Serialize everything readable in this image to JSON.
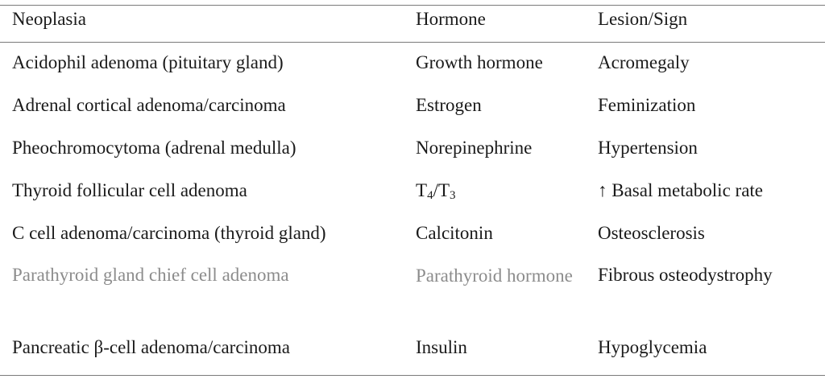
{
  "headers": {
    "neoplasia": "Neoplasia",
    "hormone": "Hormone",
    "lesion": "Lesion/Sign"
  },
  "rows": [
    {
      "neoplasia": "Acidophil adenoma (pituitary gland)",
      "hormone": "Growth hormone",
      "lesion": "Acromegaly"
    },
    {
      "neoplasia": "Adrenal cortical adenoma/carcinoma",
      "hormone": "Estrogen",
      "lesion": "Feminization"
    },
    {
      "neoplasia": "Pheochromocytoma (adrenal medulla)",
      "hormone": "Norepinephrine",
      "lesion": "Hypertension"
    },
    {
      "neoplasia": "Thyroid follicular cell adenoma",
      "hormone_main1": "T",
      "hormone_sub1": "4",
      "hormone_sep": "/T",
      "hormone_sub2": "3",
      "lesion": "↑ Basal metabolic rate"
    },
    {
      "neoplasia": "C cell adenoma/carcinoma (thyroid gland)",
      "hormone": "Calcitonin",
      "lesion": "Osteosclerosis"
    },
    {
      "neoplasia": "Parathyroid gland chief cell adenoma",
      "hormone": "Parathyroid hormone",
      "lesion": "Fibrous osteodystrophy"
    },
    {
      "neoplasia": "Pancreatic β-cell adenoma/carcinoma",
      "hormone": "Insulin",
      "lesion": "Hypoglycemia"
    }
  ]
}
